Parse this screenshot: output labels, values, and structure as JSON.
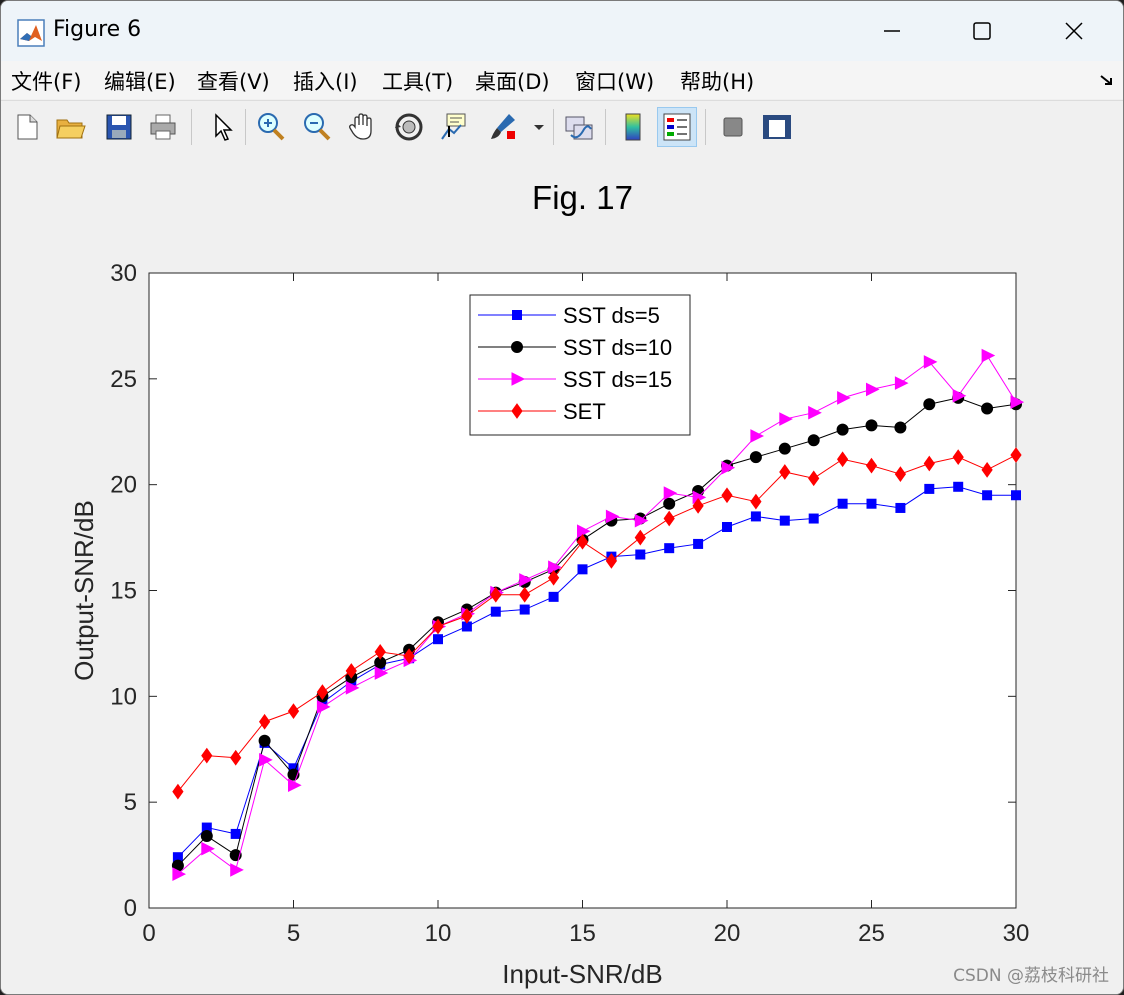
{
  "window": {
    "title": "Figure 6"
  },
  "menu": [
    "文件(F)",
    "编辑(E)",
    "查看(V)",
    "插入(I)",
    "工具(T)",
    "桌面(D)",
    "窗口(W)",
    "帮助(H)"
  ],
  "toolbar": [
    {
      "name": "new-figure-icon"
    },
    {
      "name": "open-file-icon"
    },
    {
      "name": "save-icon"
    },
    {
      "name": "print-icon"
    },
    {
      "name": "select-arrow-icon"
    },
    {
      "name": "zoom-in-icon"
    },
    {
      "name": "zoom-out-icon"
    },
    {
      "name": "pan-hand-icon"
    },
    {
      "name": "rotate-3d-icon"
    },
    {
      "name": "data-cursor-icon"
    },
    {
      "name": "brush-icon"
    },
    {
      "name": "brush-dropdown-icon"
    },
    {
      "name": "link-plot-icon"
    },
    {
      "name": "colorbar-icon"
    },
    {
      "name": "legend-icon"
    },
    {
      "name": "hide-plot-tools-icon"
    },
    {
      "name": "show-plot-tools-icon"
    }
  ],
  "watermark": "CSDN @荔枝科研社",
  "chart_data": {
    "type": "line",
    "title": "Fig. 17",
    "xlabel": "Input-SNR/dB",
    "ylabel": "Output-SNR/dB",
    "xlim": [
      0,
      30
    ],
    "ylim": [
      0,
      30
    ],
    "xticks": [
      0,
      5,
      10,
      15,
      20,
      25,
      30
    ],
    "yticks": [
      0,
      5,
      10,
      15,
      20,
      25,
      30
    ],
    "grid": false,
    "legend_position": "top-center",
    "x": [
      1,
      2,
      3,
      4,
      5,
      6,
      7,
      8,
      9,
      10,
      11,
      12,
      13,
      14,
      15,
      16,
      17,
      18,
      19,
      20,
      21,
      22,
      23,
      24,
      25,
      26,
      27,
      28,
      29,
      30
    ],
    "series": [
      {
        "name": "SST ds=5",
        "color": "#0000ff",
        "marker": "square",
        "values": [
          2.4,
          3.8,
          3.5,
          7.8,
          6.6,
          9.7,
          10.7,
          11.5,
          11.8,
          12.7,
          13.3,
          14.0,
          14.1,
          14.7,
          16.0,
          16.6,
          16.7,
          17.0,
          17.2,
          18.0,
          18.5,
          18.3,
          18.4,
          19.1,
          19.1,
          18.9,
          19.8,
          19.9,
          19.5,
          19.5
        ]
      },
      {
        "name": "SST ds=10",
        "color": "#000000",
        "marker": "circle",
        "values": [
          2.0,
          3.4,
          2.5,
          7.9,
          6.3,
          10.0,
          10.9,
          11.6,
          12.2,
          13.5,
          14.1,
          14.9,
          15.4,
          16.0,
          17.4,
          18.3,
          18.4,
          19.1,
          19.7,
          20.9,
          21.3,
          21.7,
          22.1,
          22.6,
          22.8,
          22.7,
          23.8,
          24.1,
          23.6,
          23.8
        ]
      },
      {
        "name": "SST ds=15",
        "color": "#ff00ff",
        "marker": "triangle-right",
        "values": [
          1.6,
          2.8,
          1.8,
          7.0,
          5.8,
          9.5,
          10.4,
          11.1,
          11.7,
          13.3,
          13.9,
          14.9,
          15.5,
          16.1,
          17.8,
          18.5,
          18.3,
          19.6,
          19.4,
          20.8,
          22.3,
          23.1,
          23.4,
          24.1,
          24.5,
          24.8,
          25.8,
          24.2,
          26.1,
          23.9
        ]
      },
      {
        "name": "SET",
        "color": "#ff0000",
        "marker": "diamond",
        "values": [
          5.5,
          7.2,
          7.1,
          8.8,
          9.3,
          10.2,
          11.2,
          12.1,
          11.9,
          13.3,
          13.8,
          14.8,
          14.8,
          15.6,
          17.3,
          16.4,
          17.5,
          18.4,
          19.0,
          19.5,
          19.2,
          20.6,
          20.3,
          21.2,
          20.9,
          20.5,
          21.0,
          21.3,
          20.7,
          21.4
        ]
      }
    ]
  }
}
